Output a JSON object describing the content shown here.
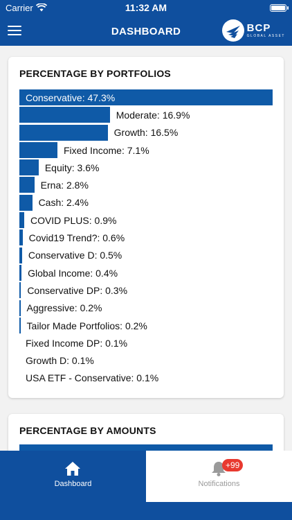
{
  "status": {
    "carrier": "Carrier",
    "time": "11:32 AM"
  },
  "header": {
    "title": "DASHBOARD",
    "logo": {
      "brand": "BCP",
      "sub": "GLOBAL ASSET"
    }
  },
  "portfolios": {
    "title": "PERCENTAGE BY PORTFOLIOS",
    "items": [
      {
        "label": "Conservative: 47.3%",
        "value": 47.3
      },
      {
        "label": "Moderate: 16.9%",
        "value": 16.9
      },
      {
        "label": "Growth: 16.5%",
        "value": 16.5
      },
      {
        "label": "Fixed Income: 7.1%",
        "value": 7.1
      },
      {
        "label": "Equity: 3.6%",
        "value": 3.6
      },
      {
        "label": "Erna: 2.8%",
        "value": 2.8
      },
      {
        "label": "Cash: 2.4%",
        "value": 2.4
      },
      {
        "label": "COVID PLUS: 0.9%",
        "value": 0.9
      },
      {
        "label": "Covid19 Trend?: 0.6%",
        "value": 0.6
      },
      {
        "label": "Conservative D: 0.5%",
        "value": 0.5
      },
      {
        "label": "Global Income: 0.4%",
        "value": 0.4
      },
      {
        "label": "Conservative DP: 0.3%",
        "value": 0.3
      },
      {
        "label": "Aggressive: 0.2%",
        "value": 0.2
      },
      {
        "label": "Tailor Made Portfolios: 0.2%",
        "value": 0.2
      },
      {
        "label": "Fixed Income DP: 0.1%",
        "value": 0.1
      },
      {
        "label": "Growth D: 0.1%",
        "value": 0.1
      },
      {
        "label": "USA ETF - Conservative: 0.1%",
        "value": 0.1
      }
    ]
  },
  "amounts": {
    "title": "PERCENTAGE BY AMOUNTS"
  },
  "tabs": {
    "dashboard": "Dashboard",
    "notifications": "Notifications",
    "notifications_badge": "+99"
  },
  "colors": {
    "primary": "#0f4f9e",
    "bar": "#0f5aa7",
    "badge": "#e8392f",
    "background": "#f2f2f2"
  }
}
